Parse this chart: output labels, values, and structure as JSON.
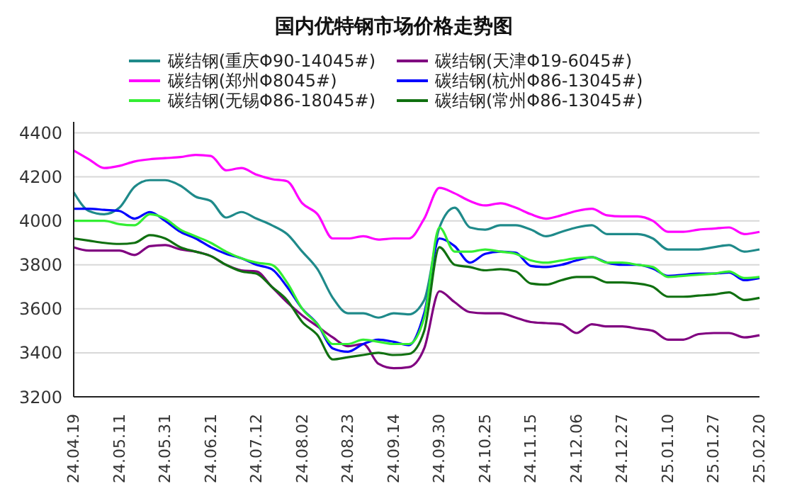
{
  "chart_data": {
    "type": "line",
    "title": "国内优特钢市场价格走势图",
    "categories": [
      "24.04.19",
      null,
      null,
      "24.05.11",
      null,
      null,
      "24.05.31",
      null,
      null,
      "24.06.21",
      null,
      null,
      "24.07.12",
      null,
      null,
      "24.08.02",
      null,
      null,
      "24.08.23",
      null,
      null,
      "24.09.14",
      null,
      null,
      "24.09.30",
      null,
      null,
      "24.10.25",
      null,
      null,
      "24.11.15",
      null,
      null,
      "24.12.06",
      null,
      null,
      "24.12.27",
      null,
      null,
      "25.01.10",
      null,
      null,
      "25.01.27",
      null,
      null,
      "25.02.20"
    ],
    "series": [
      {
        "name": "碳结钢(重庆Φ90-14045#)",
        "color": "#1f8a8a",
        "values": [
          4130,
          4045,
          4030,
          4060,
          4155,
          4185,
          4185,
          4160,
          4110,
          4090,
          4015,
          4040,
          4010,
          3980,
          3940,
          3860,
          3780,
          3650,
          3580,
          3580,
          3560,
          3580,
          3575,
          3640,
          3970,
          4060,
          3970,
          3960,
          3980,
          3980,
          3960,
          3930,
          3950,
          3970,
          3980,
          3940,
          3940,
          3940,
          3920,
          3870,
          3870,
          3870,
          3880,
          3890,
          3860,
          3870
        ]
      },
      {
        "name": "碳结钢(天津Φ19-6045#)",
        "color": "#800080",
        "values": [
          3880,
          3865,
          3865,
          3865,
          3845,
          3885,
          3890,
          3870,
          3860,
          3840,
          3800,
          3775,
          3770,
          3700,
          3630,
          3570,
          3520,
          3470,
          3430,
          3440,
          3350,
          3330,
          3335,
          3420,
          3680,
          3630,
          3585,
          3580,
          3580,
          3560,
          3540,
          3535,
          3530,
          3490,
          3530,
          3520,
          3520,
          3510,
          3500,
          3460,
          3460,
          3485,
          3490,
          3490,
          3470,
          3480
        ]
      },
      {
        "name": "碳结钢(郑州Φ8045#)",
        "color": "#ff00ff",
        "values": [
          4320,
          4280,
          4240,
          4250,
          4270,
          4280,
          4285,
          4290,
          4300,
          4295,
          4230,
          4240,
          4210,
          4190,
          4180,
          4080,
          4030,
          3920,
          3920,
          3930,
          3915,
          3920,
          3920,
          4010,
          4150,
          4125,
          4090,
          4070,
          4080,
          4060,
          4030,
          4010,
          4025,
          4045,
          4055,
          4025,
          4020,
          4020,
          4000,
          3950,
          3950,
          3960,
          3965,
          3970,
          3940,
          3950
        ]
      },
      {
        "name": "碳结钢(杭州Φ86-13045#)",
        "color": "#0000ff",
        "values": [
          4055,
          4055,
          4050,
          4045,
          4010,
          4040,
          4000,
          3950,
          3920,
          3880,
          3850,
          3830,
          3800,
          3780,
          3700,
          3600,
          3530,
          3420,
          3405,
          3440,
          3460,
          3450,
          3435,
          3580,
          3920,
          3885,
          3810,
          3850,
          3860,
          3855,
          3795,
          3790,
          3800,
          3820,
          3835,
          3810,
          3800,
          3800,
          3783,
          3750,
          3755,
          3760,
          3760,
          3765,
          3730,
          3740
        ]
      },
      {
        "name": "碳结钢(无锡Φ86-18045#)",
        "color": "#33ee33",
        "values": [
          4000,
          4000,
          4000,
          3985,
          3980,
          4030,
          4010,
          3960,
          3930,
          3900,
          3860,
          3830,
          3810,
          3800,
          3720,
          3600,
          3530,
          3440,
          3440,
          3460,
          3450,
          3440,
          3440,
          3560,
          3970,
          3860,
          3860,
          3870,
          3860,
          3850,
          3820,
          3810,
          3820,
          3830,
          3835,
          3810,
          3810,
          3800,
          3790,
          3745,
          3750,
          3755,
          3760,
          3770,
          3740,
          3745
        ]
      },
      {
        "name": "碳结钢(常州Φ86-13045#)",
        "color": "#107010",
        "values": [
          3920,
          3910,
          3900,
          3895,
          3900,
          3935,
          3920,
          3880,
          3860,
          3840,
          3800,
          3770,
          3760,
          3700,
          3640,
          3540,
          3480,
          3370,
          3380,
          3390,
          3400,
          3390,
          3395,
          3500,
          3880,
          3800,
          3790,
          3775,
          3780,
          3770,
          3715,
          3710,
          3730,
          3745,
          3745,
          3720,
          3720,
          3715,
          3700,
          3655,
          3655,
          3660,
          3665,
          3675,
          3640,
          3650
        ]
      }
    ],
    "ylim": [
      3200,
      4450
    ],
    "yticks": [
      3200,
      3400,
      3600,
      3800,
      4000,
      4200,
      4400
    ],
    "grid": "y",
    "legend": "top",
    "marker": "none",
    "line_style": "solid"
  }
}
